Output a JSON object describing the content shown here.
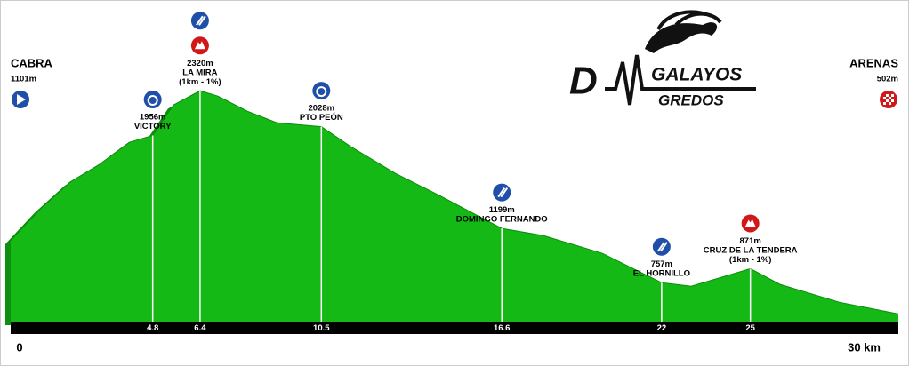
{
  "chart_data": {
    "type": "area",
    "x": [
      0,
      1,
      2,
      3,
      4,
      4.8,
      5.5,
      6.4,
      7,
      8,
      9,
      10.5,
      11.5,
      13,
      14.5,
      16.6,
      18,
      20,
      22,
      23,
      25,
      26,
      28,
      30
    ],
    "values": [
      1101,
      1358,
      1575,
      1720,
      1900,
      1956,
      2204,
      2320,
      2277,
      2154,
      2060,
      2028,
      1864,
      1647,
      1466,
      1199,
      1141,
      996,
      757,
      728,
      871,
      743,
      598,
      502
    ],
    "color": "#15b915",
    "xlim": [
      0,
      30
    ],
    "ylim": [
      440,
      3060
    ],
    "xticks": [
      0,
      4.8,
      6.4,
      10.5,
      16.6,
      22,
      25,
      {
        "value": 30,
        "label": "30 km"
      }
    ],
    "start": {
      "name": "CABRA",
      "value": 1101,
      "value_label": "1101m"
    },
    "end": {
      "name": "ARENAS",
      "value": 502,
      "value_label": "502m"
    },
    "markers": {
      "x": [
        4.8,
        6.4,
        10.5,
        16.6,
        22,
        25
      ],
      "values": [
        1956,
        2320,
        2028,
        1199,
        757,
        871
      ],
      "value_labels": [
        "1956m",
        "2320m",
        "2028m",
        "1199m",
        "757m",
        "871m"
      ],
      "names": [
        "VICTORY",
        "LA MIRA",
        "PTO PEÓN",
        "DOMINGO FERNANDO",
        "EL HORNILLO",
        "CRUZ DE LA TENDERA"
      ],
      "notes": [
        null,
        "(1km - 1%)",
        null,
        null,
        null,
        "(1km - 1%)"
      ]
    },
    "logo": {
      "letter": "D",
      "title": "GALAYOS",
      "subtitle": "GREDOS"
    }
  }
}
